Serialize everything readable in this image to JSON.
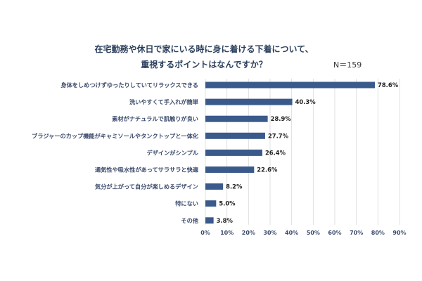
{
  "chart_data": {
    "type": "bar",
    "orientation": "horizontal",
    "title_line1": "在宅勤務や休日で家にいる時に身に着ける下着について、",
    "title_line2": "重視するポイントはなんですか？",
    "sample_size": "N＝159",
    "categories": [
      "身体をしめつけずゆったりしていてリラックスできる",
      "洗いやすくて手入れが簡単",
      "素材がナチュラルで肌触りが良い",
      "ブラジャーのカップ機能がキャミソールやタンクトップと一体化",
      "デザインがシンプル",
      "通気性や吸水性があってサラサラと快適",
      "気分が上がって自分が楽しめるデザイン",
      "特にない",
      "その他"
    ],
    "values": [
      78.6,
      40.3,
      28.9,
      27.7,
      26.4,
      22.6,
      8.2,
      5.0,
      3.8
    ],
    "value_labels": [
      "78.6%",
      "40.3%",
      "28.9%",
      "27.7%",
      "26.4%",
      "22.6%",
      "8.2%",
      "5.0%",
      "3.8%"
    ],
    "xlim": [
      0,
      90
    ],
    "x_ticks": [
      0,
      10,
      20,
      30,
      40,
      50,
      60,
      70,
      80,
      90
    ],
    "x_tick_labels": [
      "0%",
      "10%",
      "20%",
      "30%",
      "40%",
      "50%",
      "60%",
      "70%",
      "80%",
      "90%"
    ],
    "grid": true,
    "bar_color": "#3a5a8c"
  }
}
